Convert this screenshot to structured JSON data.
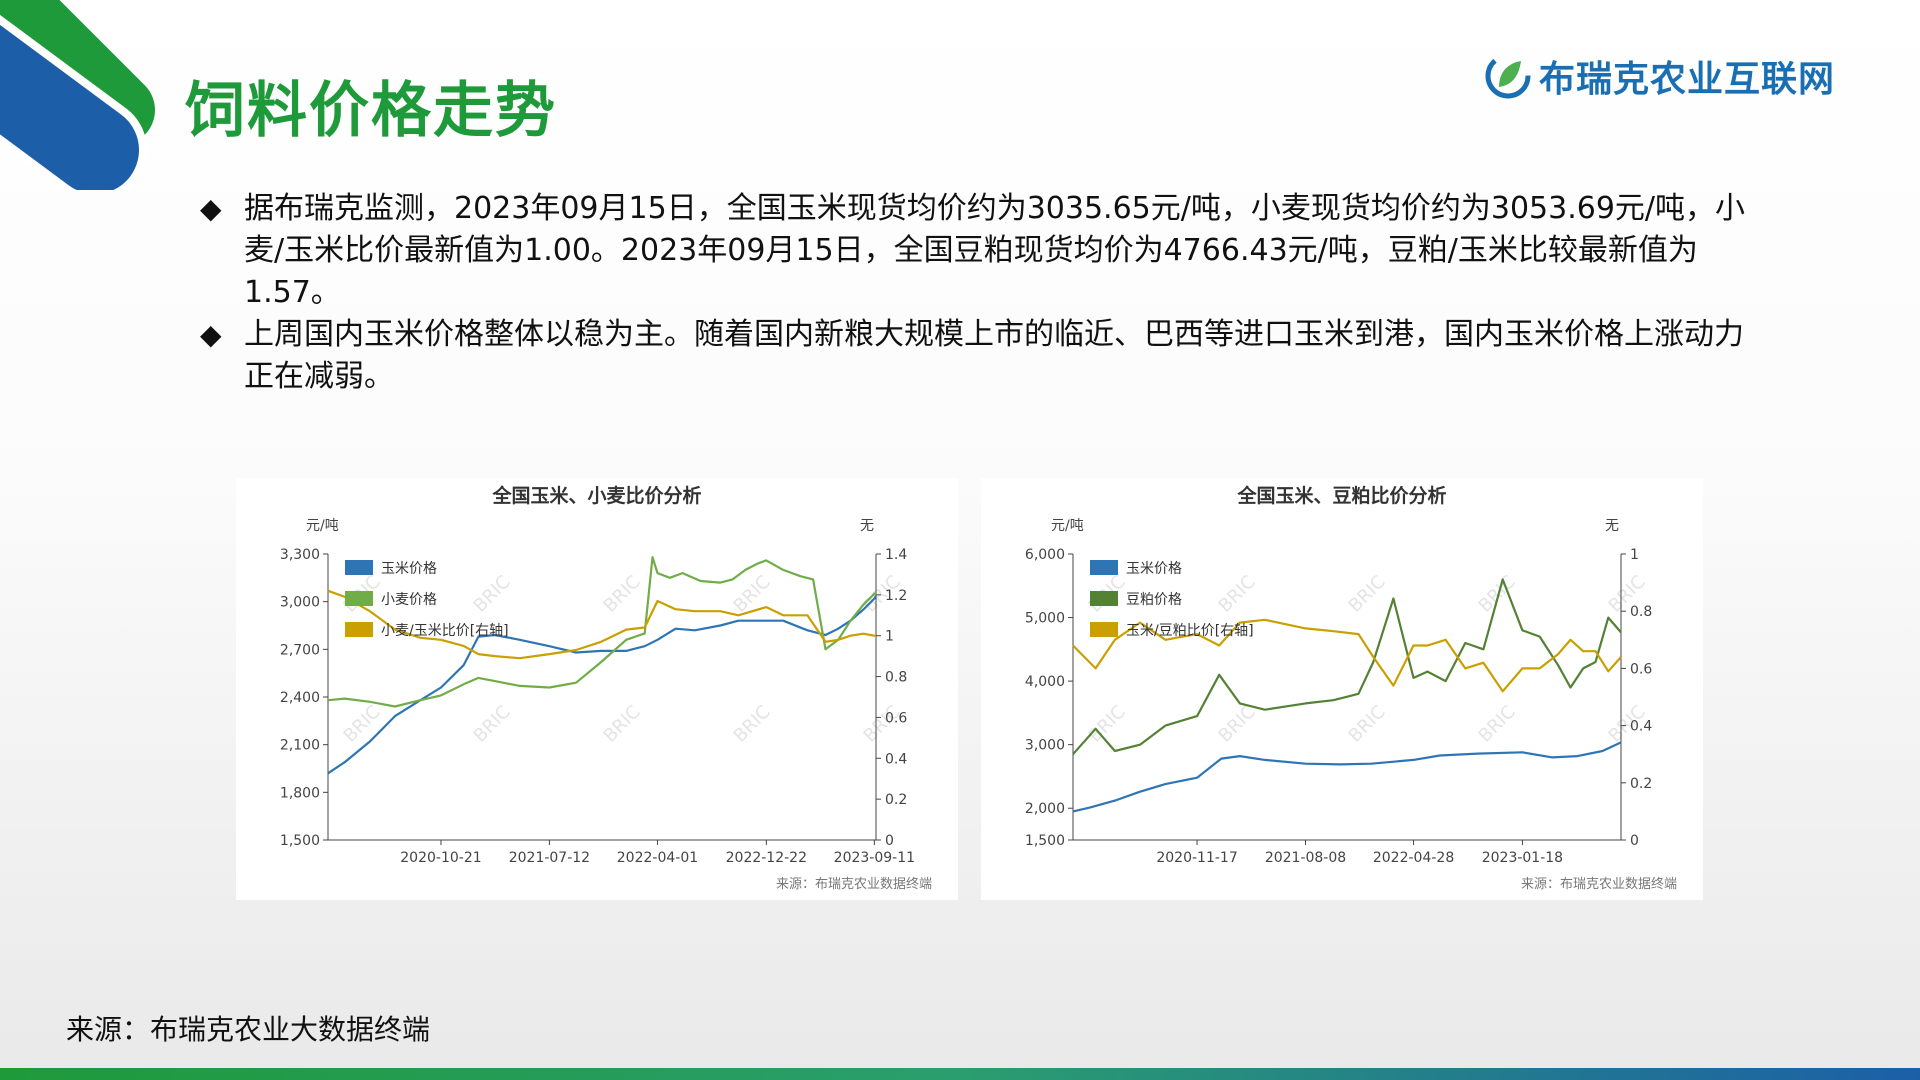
{
  "header": {
    "title": "饲料价格走势",
    "logo_text": "布瑞克农业互联网"
  },
  "bullets": [
    "据布瑞克监测，2023年09月15日，全国玉米现货均价约为3035.65元/吨，小麦现货均价约为3053.69元/吨，小麦/玉米比价最新值为1.00。2023年09月15日，全国豆粕现货均价为4766.43元/吨，豆粕/玉米比较最新值为1.57。",
    "上周国内玉米价格整体以稳为主。随着国内新粮大规模上市的临近、巴西等进口玉米到港，国内玉米价格上涨动力正在减弱。"
  ],
  "footer": {
    "source": "来源：布瑞克农业大数据终端"
  },
  "colors": {
    "title_green": "#1f9a3a",
    "corn_blue": "#2e75b6",
    "wheat_green": "#70ad47",
    "soymeal_green": "#548235",
    "ratio_gold": "#c9a000"
  },
  "chart_data": [
    {
      "type": "line",
      "title": "全国玉米、小麦比价分析",
      "y_unit_left": "元/吨",
      "y_unit_right": "无",
      "x_ticks": [
        "2020-10-21",
        "2021-07-12",
        "2022-04-01",
        "2022-12-22",
        "2023-09-11"
      ],
      "x_range": [
        "2020-01-20",
        "2023-09-15"
      ],
      "y_left_ticks": [
        "1,500",
        "1,800",
        "2,100",
        "2,400",
        "2,700",
        "3,000",
        "3,300"
      ],
      "y_right_ticks": [
        "0",
        "0.2",
        "0.4",
        "0.6",
        "0.8",
        "1",
        "1.2",
        "1.4"
      ],
      "ylim_left": [
        1500,
        3300
      ],
      "ylim_right": [
        0,
        1.4
      ],
      "legend_position": "top-left",
      "watermark": "BRIC",
      "source_note": "来源：布瑞克农业数据终端",
      "series": [
        {
          "name": "玉米价格",
          "axis": "left",
          "color": "#2e75b6",
          "x": [
            "2020-01-20",
            "2020-03-01",
            "2020-05-01",
            "2020-07-01",
            "2020-09-01",
            "2020-10-21",
            "2020-12-15",
            "2021-01-20",
            "2021-03-01",
            "2021-05-01",
            "2021-07-12",
            "2021-09-15",
            "2021-11-15",
            "2022-01-15",
            "2022-03-01",
            "2022-04-01",
            "2022-05-15",
            "2022-07-01",
            "2022-09-01",
            "2022-10-15",
            "2022-12-22",
            "2023-02-01",
            "2023-04-01",
            "2023-05-15",
            "2023-06-15",
            "2023-07-15",
            "2023-08-15",
            "2023-09-11",
            "2023-09-15"
          ],
          "y": [
            1920,
            1990,
            2120,
            2280,
            2380,
            2460,
            2600,
            2780,
            2790,
            2760,
            2720,
            2680,
            2690,
            2690,
            2720,
            2760,
            2830,
            2820,
            2850,
            2880,
            2880,
            2880,
            2820,
            2790,
            2830,
            2880,
            2950,
            3020,
            3036
          ]
        },
        {
          "name": "小麦价格",
          "axis": "left",
          "color": "#70ad47",
          "x": [
            "2020-01-20",
            "2020-03-01",
            "2020-05-01",
            "2020-07-01",
            "2020-09-01",
            "2020-10-21",
            "2020-12-15",
            "2021-01-20",
            "2021-03-01",
            "2021-05-01",
            "2021-07-12",
            "2021-09-15",
            "2021-11-15",
            "2022-01-15",
            "2022-03-01",
            "2022-03-20",
            "2022-04-01",
            "2022-05-01",
            "2022-06-01",
            "2022-07-15",
            "2022-09-01",
            "2022-10-01",
            "2022-11-01",
            "2022-12-01",
            "2022-12-22",
            "2023-02-01",
            "2023-03-15",
            "2023-04-15",
            "2023-05-15",
            "2023-06-15",
            "2023-07-15",
            "2023-08-15",
            "2023-09-11",
            "2023-09-15"
          ],
          "y": [
            2380,
            2390,
            2370,
            2340,
            2380,
            2410,
            2480,
            2520,
            2500,
            2470,
            2460,
            2490,
            2620,
            2760,
            2800,
            3280,
            3180,
            3150,
            3180,
            3130,
            3120,
            3140,
            3200,
            3240,
            3260,
            3200,
            3160,
            3140,
            2700,
            2760,
            2880,
            2980,
            3050,
            3054
          ]
        },
        {
          "name": "小麦/玉米比价[右轴]",
          "axis": "right",
          "color": "#c9a000",
          "x": [
            "2020-01-20",
            "2020-03-01",
            "2020-05-01",
            "2020-07-01",
            "2020-09-01",
            "2020-10-21",
            "2020-12-15",
            "2021-01-20",
            "2021-03-01",
            "2021-05-01",
            "2021-07-12",
            "2021-09-15",
            "2021-11-15",
            "2022-01-15",
            "2022-03-01",
            "2022-04-01",
            "2022-05-15",
            "2022-07-01",
            "2022-09-01",
            "2022-10-15",
            "2022-12-22",
            "2023-02-01",
            "2023-04-01",
            "2023-05-15",
            "2023-06-15",
            "2023-07-15",
            "2023-08-15",
            "2023-09-11",
            "2023-09-15"
          ],
          "y": [
            1.22,
            1.19,
            1.12,
            1.03,
            0.99,
            0.98,
            0.95,
            0.91,
            0.9,
            0.89,
            0.91,
            0.93,
            0.97,
            1.03,
            1.04,
            1.17,
            1.13,
            1.12,
            1.12,
            1.1,
            1.14,
            1.1,
            1.1,
            0.97,
            0.98,
            1.0,
            1.01,
            1.0,
            1.0
          ]
        }
      ]
    },
    {
      "type": "line",
      "title": "全国玉米、豆粕比价分析",
      "y_unit_left": "元/吨",
      "y_unit_right": "无",
      "x_ticks": [
        "2020-11-17",
        "2021-08-08",
        "2022-04-28",
        "2023-01-18"
      ],
      "x_range": [
        "2020-01-20",
        "2023-09-15"
      ],
      "y_left_ticks": [
        "1,500",
        "2,000",
        "3,000",
        "4,000",
        "5,000",
        "6,000"
      ],
      "y_right_ticks": [
        "0",
        "0.2",
        "0.4",
        "0.6",
        "0.8",
        "1"
      ],
      "ylim_left": [
        1500,
        6000
      ],
      "ylim_right": [
        0,
        1
      ],
      "legend_position": "top-left",
      "watermark": "BRIC",
      "source_note": "来源：布瑞克农业数据终端",
      "series": [
        {
          "name": "玉米价格",
          "axis": "left",
          "color": "#2e75b6",
          "x": [
            "2020-01-20",
            "2020-03-01",
            "2020-05-01",
            "2020-07-01",
            "2020-09-01",
            "2020-11-17",
            "2021-01-15",
            "2021-03-01",
            "2021-05-01",
            "2021-08-08",
            "2021-11-01",
            "2022-01-15",
            "2022-04-28",
            "2022-07-01",
            "2022-10-01",
            "2023-01-18",
            "2023-04-01",
            "2023-06-01",
            "2023-08-01",
            "2023-09-15"
          ],
          "y": [
            1950,
            2010,
            2120,
            2260,
            2380,
            2480,
            2780,
            2820,
            2760,
            2700,
            2690,
            2700,
            2760,
            2830,
            2860,
            2880,
            2800,
            2820,
            2900,
            3036
          ]
        },
        {
          "name": "豆粕价格",
          "axis": "left",
          "color": "#548235",
          "x": [
            "2020-01-20",
            "2020-03-15",
            "2020-05-01",
            "2020-07-01",
            "2020-09-01",
            "2020-11-17",
            "2021-01-10",
            "2021-03-01",
            "2021-05-01",
            "2021-08-08",
            "2021-10-15",
            "2021-12-15",
            "2022-01-20",
            "2022-03-10",
            "2022-04-28",
            "2022-06-01",
            "2022-07-15",
            "2022-09-01",
            "2022-10-15",
            "2022-12-01",
            "2023-01-18",
            "2023-03-01",
            "2023-04-15",
            "2023-05-15",
            "2023-06-15",
            "2023-07-15",
            "2023-08-15",
            "2023-09-15"
          ],
          "y": [
            2850,
            3250,
            2900,
            3000,
            3300,
            3450,
            4100,
            3650,
            3550,
            3650,
            3700,
            3800,
            4300,
            5300,
            4050,
            4150,
            4000,
            4600,
            4500,
            5600,
            4800,
            4700,
            4250,
            3900,
            4200,
            4300,
            5000,
            4766
          ]
        },
        {
          "name": "玉米/豆粕比价[右轴]",
          "axis": "right",
          "color": "#c9a000",
          "x": [
            "2020-01-20",
            "2020-03-15",
            "2020-05-01",
            "2020-07-01",
            "2020-09-01",
            "2020-11-17",
            "2021-01-10",
            "2021-03-01",
            "2021-05-01",
            "2021-08-08",
            "2021-10-15",
            "2021-12-15",
            "2022-01-20",
            "2022-03-10",
            "2022-04-28",
            "2022-06-01",
            "2022-07-15",
            "2022-09-01",
            "2022-10-15",
            "2022-12-01",
            "2023-01-18",
            "2023-03-01",
            "2023-04-15",
            "2023-05-15",
            "2023-06-15",
            "2023-07-15",
            "2023-08-15",
            "2023-09-15"
          ],
          "y": [
            0.68,
            0.6,
            0.7,
            0.76,
            0.7,
            0.72,
            0.68,
            0.76,
            0.77,
            0.74,
            0.73,
            0.72,
            0.64,
            0.54,
            0.68,
            0.68,
            0.7,
            0.6,
            0.62,
            0.52,
            0.6,
            0.6,
            0.65,
            0.7,
            0.66,
            0.66,
            0.59,
            0.64
          ]
        }
      ]
    }
  ]
}
